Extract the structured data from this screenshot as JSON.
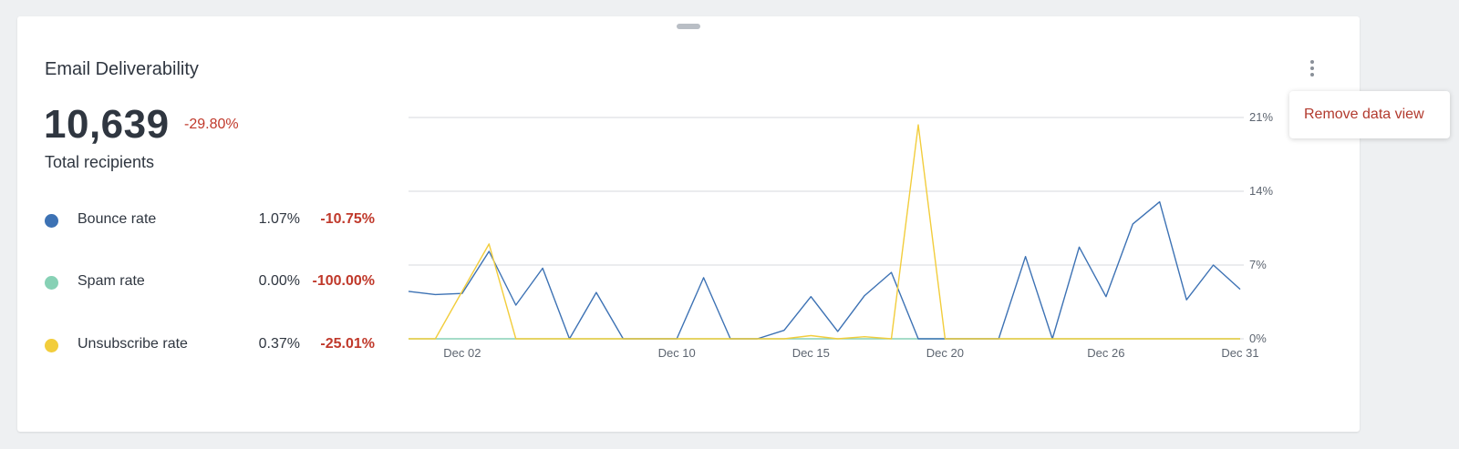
{
  "card": {
    "title": "Email Deliverability",
    "menu_icon": "kebab-vertical-icon"
  },
  "summary": {
    "value": "10,639",
    "change": "-29.80%",
    "label": "Total recipients"
  },
  "metrics": [
    {
      "label": "Bounce rate",
      "value": "1.07%",
      "change": "-10.75%",
      "color": "#3d72b4"
    },
    {
      "label": "Spam rate",
      "value": "0.00%",
      "change": "-100.00%",
      "color": "#87d1b5"
    },
    {
      "label": "Unsubscribe rate",
      "value": "0.37%",
      "change": "-25.01%",
      "color": "#f2cd3c"
    }
  ],
  "menu": {
    "remove_label": "Remove data view"
  },
  "colors": {
    "negative": "#c0392b",
    "bounce": "#3d72b4",
    "spam": "#87d1b5",
    "unsubscribe": "#f2cd3c",
    "grid": "#d7dadd"
  },
  "chart_data": {
    "type": "line",
    "x": [
      "Nov 30",
      "Dec 01",
      "Dec 02",
      "Dec 03",
      "Dec 04",
      "Dec 05",
      "Dec 06",
      "Dec 07",
      "Dec 08",
      "Dec 09",
      "Dec 10",
      "Dec 11",
      "Dec 12",
      "Dec 13",
      "Dec 14",
      "Dec 15",
      "Dec 16",
      "Dec 17",
      "Dec 18",
      "Dec 19",
      "Dec 20",
      "Dec 21",
      "Dec 22",
      "Dec 23",
      "Dec 24",
      "Dec 25",
      "Dec 26",
      "Dec 27",
      "Dec 28",
      "Dec 29",
      "Dec 30",
      "Dec 31"
    ],
    "x_tick_labels": [
      "Dec 02",
      "Dec 10",
      "Dec 15",
      "Dec 20",
      "Dec 26",
      "Dec 31"
    ],
    "y_tick_labels": [
      "0%",
      "7%",
      "14%",
      "21%"
    ],
    "ylim": [
      0,
      21
    ],
    "y_axis_position": "right",
    "grid": true,
    "series": [
      {
        "name": "Bounce rate",
        "color": "#3d72b4",
        "values": [
          4.5,
          4.2,
          4.3,
          8.3,
          3.2,
          6.7,
          0,
          4.4,
          0,
          0,
          0,
          5.8,
          0,
          0,
          0.8,
          4.0,
          0.7,
          4.1,
          6.3,
          0,
          0,
          0,
          0,
          7.8,
          0,
          8.7,
          4.0,
          10.9,
          13.0,
          3.7,
          7.0,
          4.7
        ]
      },
      {
        "name": "Spam rate",
        "color": "#87d1b5",
        "values": [
          0,
          0,
          0,
          0,
          0,
          0,
          0,
          0,
          0,
          0,
          0,
          0,
          0,
          0,
          0,
          0,
          0,
          0,
          0,
          0,
          0,
          0,
          0,
          0,
          0,
          0,
          0,
          0,
          0,
          0,
          0,
          0
        ]
      },
      {
        "name": "Unsubscribe rate",
        "color": "#f2cd3c",
        "values": [
          0,
          0,
          4.5,
          9.0,
          0,
          0,
          0,
          0,
          0,
          0,
          0,
          0,
          0,
          0,
          0,
          0.3,
          0,
          0.2,
          0,
          20.3,
          0,
          0,
          0,
          0,
          0,
          0,
          0,
          0,
          0,
          0,
          0,
          0
        ]
      }
    ]
  }
}
